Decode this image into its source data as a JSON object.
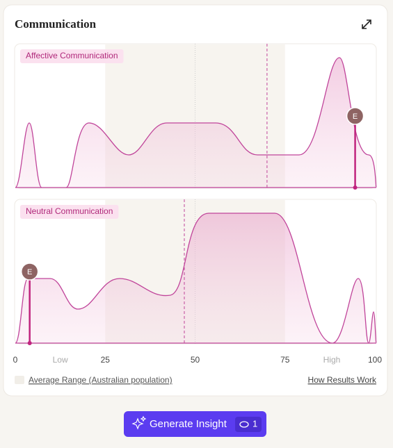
{
  "header": {
    "title": "Communication"
  },
  "axis": {
    "xlim": [
      0,
      100
    ],
    "xticks": [
      0,
      {
        "value": 12.5,
        "label": "Low"
      },
      25,
      50,
      75,
      {
        "value": 88,
        "label": "High"
      },
      100
    ]
  },
  "panels": [
    {
      "label": "Affective Communication",
      "average_range": [
        25,
        75
      ],
      "center": 50,
      "dashed": 70,
      "marker": {
        "label": "E",
        "value": 94.5
      }
    },
    {
      "label": "Neutral Communication",
      "average_range": [
        25,
        75
      ],
      "center": 50,
      "dashed": 47,
      "marker": {
        "label": "E",
        "value": 4
      }
    }
  ],
  "legend": {
    "label": "Average Range (Australian population)"
  },
  "link": {
    "label": "How Results Work"
  },
  "button": {
    "label": "Generate Insight",
    "badge": "1"
  }
}
